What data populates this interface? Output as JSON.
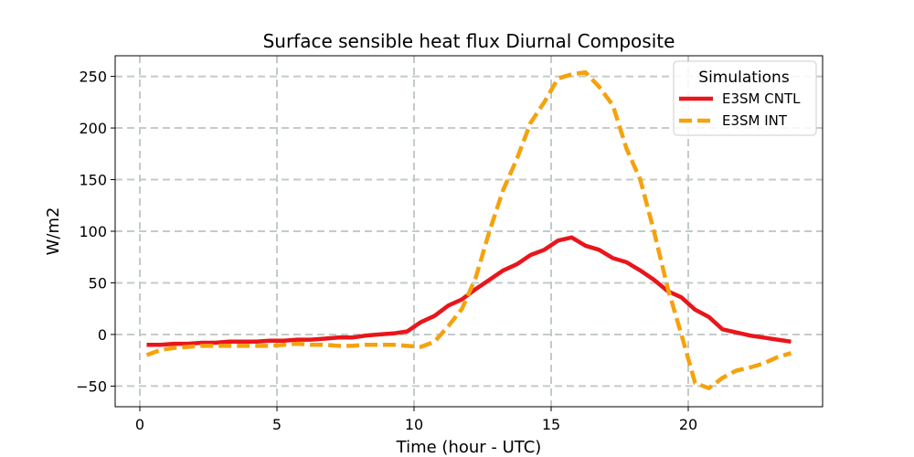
{
  "chart_data": {
    "type": "line",
    "title": "Surface sensible heat flux Diurnal Composite",
    "xlabel": "Time (hour - UTC)",
    "ylabel": "W/m2",
    "xlim": [
      -0.9,
      24.9
    ],
    "ylim": [
      -70,
      270
    ],
    "xticks": [
      0,
      5,
      10,
      15,
      20
    ],
    "yticks": [
      -50,
      0,
      50,
      100,
      150,
      200,
      250
    ],
    "grid": true,
    "legend": {
      "title": "Simulations",
      "placement": "top-right"
    },
    "x": [
      0.25,
      0.75,
      1.25,
      1.75,
      2.25,
      2.75,
      3.25,
      3.75,
      4.25,
      4.75,
      5.25,
      5.75,
      6.25,
      6.75,
      7.25,
      7.75,
      8.25,
      8.75,
      9.25,
      9.75,
      10.25,
      10.75,
      11.25,
      11.75,
      12.25,
      12.75,
      13.25,
      13.75,
      14.25,
      14.75,
      15.25,
      15.75,
      16.25,
      16.75,
      17.25,
      17.75,
      18.25,
      18.75,
      19.25,
      19.75,
      20.25,
      20.75,
      21.25,
      21.75,
      22.25,
      22.75,
      23.25,
      23.75
    ],
    "series": [
      {
        "name": "E3SM CNTL",
        "color": "#e8161b",
        "style": "solid",
        "values": [
          -10,
          -10,
          -9,
          -9,
          -8,
          -8,
          -7,
          -7,
          -7,
          -6,
          -6,
          -5,
          -5,
          -4,
          -3,
          -3,
          -1,
          0,
          1,
          3,
          12,
          18,
          28,
          34,
          44,
          53,
          62,
          68,
          77,
          82,
          91,
          94,
          86,
          82,
          74,
          70,
          62,
          53,
          42,
          36,
          24,
          17,
          5,
          2,
          -1,
          -3,
          -5,
          -7
        ]
      },
      {
        "name": "E3SM INT",
        "color": "#f5a20d",
        "style": "dashed",
        "values": [
          -20,
          -15,
          -13,
          -12,
          -11,
          -11,
          -11,
          -11,
          -11,
          -11,
          -10,
          -9,
          -10,
          -10,
          -11,
          -11,
          -10,
          -10,
          -10,
          -11,
          -12,
          -7,
          8,
          25,
          55,
          100,
          140,
          170,
          205,
          225,
          248,
          252,
          254,
          240,
          222,
          180,
          150,
          100,
          45,
          0,
          -47,
          -52,
          -42,
          -35,
          -32,
          -28,
          -22,
          -18
        ]
      }
    ]
  }
}
